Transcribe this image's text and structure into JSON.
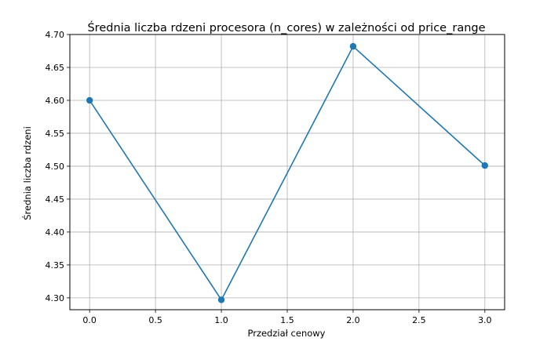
{
  "chart_data": {
    "type": "line",
    "title": "Średnia liczba rdzeni procesora (n_cores) w zależności od price_range",
    "xlabel": "Przedział cenowy",
    "ylabel": "Średnia liczba rdzeni",
    "x": [
      0,
      1,
      2,
      3
    ],
    "series": [
      {
        "values": [
          4.6,
          4.297,
          4.682,
          4.501
        ]
      }
    ],
    "xlim": [
      -0.15,
      3.15
    ],
    "ylim": [
      4.282,
      4.7
    ],
    "x_ticks": [
      "0.0",
      "0.5",
      "1.0",
      "1.5",
      "2.0",
      "2.5",
      "3.0"
    ],
    "y_ticks": [
      "4.30",
      "4.35",
      "4.40",
      "4.45",
      "4.50",
      "4.55",
      "4.60",
      "4.65",
      "4.70"
    ],
    "grid": true,
    "marker": "circle",
    "line_color": "#1f77b4",
    "grid_color": "#b0b0b0"
  }
}
